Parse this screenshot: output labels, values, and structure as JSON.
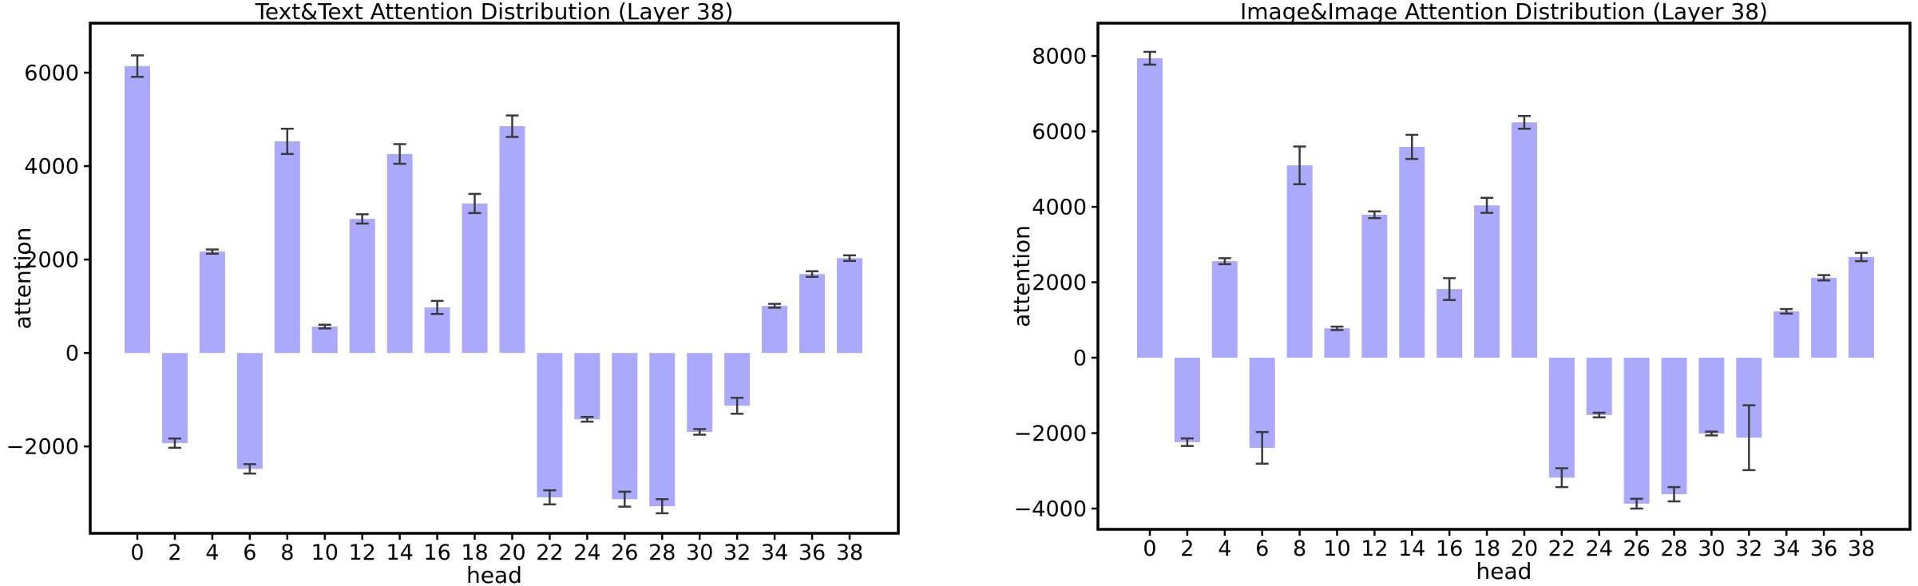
{
  "figure": {
    "background": "#ffffff"
  },
  "styles": {
    "bar_color": "#aaa9fb",
    "error_color": "#3b3b3b",
    "axis_color": "#000000",
    "text_color": "#000000"
  },
  "chart_data": [
    {
      "type": "bar",
      "title": "Text&Text Attention Distribution (Layer 38)",
      "xlabel": "head",
      "ylabel": "attention",
      "categories": [
        0,
        2,
        4,
        6,
        8,
        10,
        12,
        14,
        16,
        18,
        20,
        22,
        24,
        26,
        28,
        30,
        32,
        34,
        36,
        38
      ],
      "values": [
        6140,
        -1930,
        2170,
        -2480,
        4530,
        565,
        2870,
        4260,
        975,
        3200,
        4855,
        -3090,
        -1420,
        -3130,
        -3280,
        -1690,
        -1130,
        1010,
        1690,
        2030
      ],
      "errors": [
        230,
        100,
        45,
        100,
        270,
        40,
        100,
        210,
        140,
        205,
        230,
        150,
        50,
        160,
        150,
        60,
        170,
        40,
        60,
        60
      ],
      "ylim": [
        -3860,
        7060
      ],
      "yticks": [
        6000,
        4000,
        2000,
        0,
        -2000
      ],
      "grid": false,
      "legend": null
    },
    {
      "type": "bar",
      "title": "Image&Image Attention Distribution (Layer 38)",
      "xlabel": "head",
      "ylabel": "attention",
      "categories": [
        0,
        2,
        4,
        6,
        8,
        10,
        12,
        14,
        16,
        18,
        20,
        22,
        24,
        26,
        28,
        30,
        32,
        34,
        36,
        38
      ],
      "values": [
        7940,
        -2240,
        2560,
        -2390,
        5100,
        780,
        3790,
        5590,
        1820,
        4040,
        6240,
        -3180,
        -1520,
        -3870,
        -3620,
        -2010,
        -2120,
        1230,
        2120,
        2670
      ],
      "errors": [
        170,
        100,
        80,
        420,
        500,
        45,
        90,
        320,
        290,
        200,
        170,
        250,
        60,
        130,
        190,
        50,
        860,
        60,
        70,
        110
      ],
      "ylim": [
        -4550,
        8870
      ],
      "yticks": [
        8000,
        6000,
        4000,
        2000,
        0,
        -2000,
        -4000
      ],
      "grid": false,
      "legend": null
    }
  ]
}
